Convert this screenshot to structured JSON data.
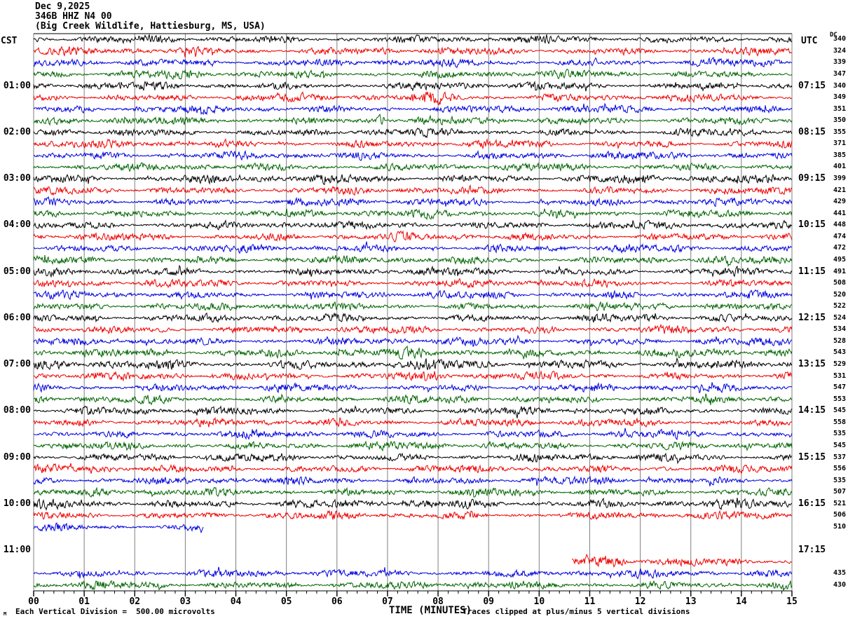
{
  "header": {
    "date": "Dec 9,2025",
    "station": "346B HHZ N4 00",
    "location": "(Big Creek Wildlife, Hattiesburg, MS, USA)"
  },
  "axes": {
    "left_header": "CST",
    "right_header": "UTC",
    "dc_header": "DC"
  },
  "footer": {
    "watermark": "M",
    "left": "Each Vertical Division =  500.00 microvolts",
    "right": "Traces clipped at plus/minus 5 vertical divisions"
  },
  "colors": {
    "black": "#000000",
    "red": "#ee0000",
    "blue": "#0000dd",
    "green": "#006400",
    "grid": "#7f7f7f",
    "axis": "#000000"
  },
  "chart_data": {
    "type": "line",
    "kind": "seismogram-helicorder",
    "xlabel": "TIME (MINUTES)",
    "x_range_minutes": [
      0,
      15
    ],
    "minutes_per_line": 15,
    "minor_ticks_per_minute": 5,
    "x_ticks": [
      "00",
      "01",
      "02",
      "03",
      "04",
      "05",
      "06",
      "07",
      "08",
      "09",
      "10",
      "11",
      "12",
      "13",
      "14",
      "15"
    ],
    "trace_color_cycle": [
      "black",
      "red",
      "blue",
      "green"
    ],
    "rows": [
      {
        "i": 0,
        "color": "black",
        "cst": null,
        "utc": null,
        "dc": 340
      },
      {
        "i": 1,
        "color": "red",
        "dc": 324
      },
      {
        "i": 2,
        "color": "blue",
        "dc": 339
      },
      {
        "i": 3,
        "color": "green",
        "dc": 347
      },
      {
        "i": 4,
        "color": "black",
        "cst": "01:00",
        "utc": "07:15",
        "dc": 340
      },
      {
        "i": 5,
        "color": "red",
        "dc": 349
      },
      {
        "i": 6,
        "color": "blue",
        "dc": 351
      },
      {
        "i": 7,
        "color": "green",
        "dc": 350
      },
      {
        "i": 8,
        "color": "black",
        "cst": "02:00",
        "utc": "08:15",
        "dc": 355
      },
      {
        "i": 9,
        "color": "red",
        "dc": 371
      },
      {
        "i": 10,
        "color": "blue",
        "dc": 385
      },
      {
        "i": 11,
        "color": "green",
        "dc": 401
      },
      {
        "i": 12,
        "color": "black",
        "cst": "03:00",
        "utc": "09:15",
        "dc": 399,
        "amp": 1.1
      },
      {
        "i": 13,
        "color": "red",
        "dc": 421
      },
      {
        "i": 14,
        "color": "blue",
        "dc": 429
      },
      {
        "i": 15,
        "color": "green",
        "dc": 441
      },
      {
        "i": 16,
        "color": "black",
        "cst": "04:00",
        "utc": "10:15",
        "dc": 448
      },
      {
        "i": 17,
        "color": "red",
        "dc": 474
      },
      {
        "i": 18,
        "color": "blue",
        "dc": 472
      },
      {
        "i": 19,
        "color": "green",
        "dc": 495
      },
      {
        "i": 20,
        "color": "black",
        "cst": "05:00",
        "utc": "11:15",
        "dc": 491
      },
      {
        "i": 21,
        "color": "red",
        "dc": 508
      },
      {
        "i": 22,
        "color": "blue",
        "dc": 520
      },
      {
        "i": 23,
        "color": "green",
        "dc": 522
      },
      {
        "i": 24,
        "color": "black",
        "cst": "06:00",
        "utc": "12:15",
        "dc": 524
      },
      {
        "i": 25,
        "color": "red",
        "dc": 534
      },
      {
        "i": 26,
        "color": "blue",
        "dc": 528
      },
      {
        "i": 27,
        "color": "green",
        "dc": 543,
        "amp": 1.15
      },
      {
        "i": 28,
        "color": "black",
        "cst": "07:00",
        "utc": "13:15",
        "dc": 529,
        "amp": 1.25
      },
      {
        "i": 29,
        "color": "red",
        "dc": 531
      },
      {
        "i": 30,
        "color": "blue",
        "dc": 547
      },
      {
        "i": 31,
        "color": "green",
        "dc": 553
      },
      {
        "i": 32,
        "color": "black",
        "cst": "08:00",
        "utc": "14:15",
        "dc": 545
      },
      {
        "i": 33,
        "color": "red",
        "dc": 558
      },
      {
        "i": 34,
        "color": "blue",
        "dc": 535
      },
      {
        "i": 35,
        "color": "green",
        "dc": 545
      },
      {
        "i": 36,
        "color": "black",
        "cst": "09:00",
        "utc": "15:15",
        "dc": 537
      },
      {
        "i": 37,
        "color": "red",
        "dc": 556
      },
      {
        "i": 38,
        "color": "blue",
        "dc": 535
      },
      {
        "i": 39,
        "color": "green",
        "dc": 507
      },
      {
        "i": 40,
        "color": "black",
        "cst": "10:00",
        "utc": "16:15",
        "dc": 521,
        "amp": 1.15
      },
      {
        "i": 41,
        "color": "red",
        "dc": 506
      },
      {
        "i": 42,
        "color": "blue",
        "dc": 510,
        "end_min": 3.35
      },
      {
        "i": 43,
        "color": "green",
        "dc": null,
        "trace": false
      },
      {
        "i": 44,
        "color": "black",
        "cst": "11:00",
        "utc": "17:15",
        "dc": null,
        "trace": false
      },
      {
        "i": 45,
        "color": "red",
        "dc": null,
        "start_min": 10.65,
        "amp": 1.2
      },
      {
        "i": 46,
        "color": "blue",
        "dc": 435
      },
      {
        "i": 47,
        "color": "green",
        "dc": 430
      }
    ],
    "events": [
      {
        "row": 5,
        "min": 8.1,
        "width": 0.5,
        "gain": 2.0
      },
      {
        "row": 7,
        "min": 6.87,
        "width": 0.07,
        "gain": 4.5
      },
      {
        "row": 29,
        "min": 7.9,
        "width": 0.4,
        "gain": 1.6
      },
      {
        "row": 45,
        "min": 11.3,
        "width": 0.7,
        "gain": 1.5
      }
    ]
  }
}
